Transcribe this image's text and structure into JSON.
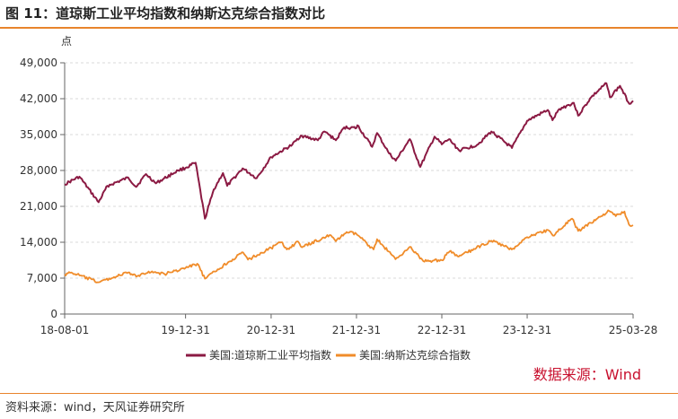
{
  "header": {
    "title": "图 11：道琼斯工业平均指数和纳斯达克综合指数对比"
  },
  "footer": {
    "source": "资料来源：wind，天风证券研究所"
  },
  "colors": {
    "accent": "#e8842c",
    "dow": "#8b1a43",
    "nasdaq": "#f08c2a",
    "watermark": "#c8102e"
  },
  "chart_data": {
    "type": "line",
    "unit_label": "点",
    "watermark": "数据来源：Wind",
    "x_ticks": [
      "18-08-01",
      "19-12-31",
      "20-12-31",
      "21-12-31",
      "22-12-31",
      "23-12-31",
      "25-03-28"
    ],
    "x_range": [
      "2018-08-01",
      "2025-03-28"
    ],
    "y_ticks": [
      "0",
      "7,000",
      "14,000",
      "21,000",
      "28,000",
      "35,000",
      "42,000",
      "49,000"
    ],
    "ylim": [
      0,
      49000
    ],
    "grid": true,
    "legend_position": "bottom",
    "series": [
      {
        "name": "美国:道琼斯工业平均指数",
        "color_key": "dow",
        "points": [
          [
            "2018-08-01",
            25300
          ],
          [
            "2018-10-03",
            26800
          ],
          [
            "2018-12-24",
            21800
          ],
          [
            "2019-01-31",
            25000
          ],
          [
            "2019-04-30",
            26600
          ],
          [
            "2019-06-03",
            24800
          ],
          [
            "2019-07-15",
            27300
          ],
          [
            "2019-08-26",
            25500
          ],
          [
            "2019-11-29",
            28000
          ],
          [
            "2019-12-31",
            28500
          ],
          [
            "2020-02-12",
            29500
          ],
          [
            "2020-03-23",
            18600
          ],
          [
            "2020-04-30",
            24300
          ],
          [
            "2020-06-08",
            27500
          ],
          [
            "2020-06-26",
            25000
          ],
          [
            "2020-08-31",
            28400
          ],
          [
            "2020-10-30",
            26500
          ],
          [
            "2020-12-31",
            30600
          ],
          [
            "2021-03-31",
            33000
          ],
          [
            "2021-05-07",
            34800
          ],
          [
            "2021-07-19",
            33900
          ],
          [
            "2021-08-16",
            35600
          ],
          [
            "2021-10-04",
            33900
          ],
          [
            "2021-11-08",
            36400
          ],
          [
            "2021-12-31",
            36300
          ],
          [
            "2022-01-04",
            36800
          ],
          [
            "2022-03-08",
            32600
          ],
          [
            "2022-03-29",
            35300
          ],
          [
            "2022-05-20",
            31300
          ],
          [
            "2022-06-17",
            29900
          ],
          [
            "2022-08-16",
            34100
          ],
          [
            "2022-09-30",
            28700
          ],
          [
            "2022-11-30",
            34600
          ],
          [
            "2022-12-31",
            33100
          ],
          [
            "2023-01-31",
            34100
          ],
          [
            "2023-03-15",
            31900
          ],
          [
            "2023-05-31",
            33000
          ],
          [
            "2023-07-31",
            35600
          ],
          [
            "2023-10-27",
            32400
          ],
          [
            "2023-12-31",
            37700
          ],
          [
            "2024-03-28",
            39800
          ],
          [
            "2024-04-17",
            37800
          ],
          [
            "2024-05-17",
            40000
          ],
          [
            "2024-07-17",
            41200
          ],
          [
            "2024-08-05",
            38700
          ],
          [
            "2024-09-30",
            42300
          ],
          [
            "2024-12-04",
            45000
          ],
          [
            "2024-12-19",
            42300
          ],
          [
            "2025-01-31",
            44500
          ],
          [
            "2025-03-12",
            41000
          ],
          [
            "2025-03-28",
            41600
          ]
        ]
      },
      {
        "name": "美国:纳斯达克综合指数",
        "color_key": "nasdaq",
        "points": [
          [
            "2018-08-01",
            7700
          ],
          [
            "2018-08-29",
            8100
          ],
          [
            "2018-12-24",
            6200
          ],
          [
            "2019-04-30",
            8100
          ],
          [
            "2019-06-03",
            7300
          ],
          [
            "2019-07-26",
            8300
          ],
          [
            "2019-10-02",
            7800
          ],
          [
            "2019-12-31",
            9000
          ],
          [
            "2020-02-19",
            9800
          ],
          [
            "2020-03-23",
            6900
          ],
          [
            "2020-06-30",
            10100
          ],
          [
            "2020-09-02",
            12000
          ],
          [
            "2020-09-23",
            10600
          ],
          [
            "2020-12-31",
            12900
          ],
          [
            "2021-02-12",
            14000
          ],
          [
            "2021-03-08",
            12600
          ],
          [
            "2021-04-26",
            14100
          ],
          [
            "2021-05-12",
            13000
          ],
          [
            "2021-09-07",
            15400
          ],
          [
            "2021-10-04",
            14200
          ],
          [
            "2021-11-19",
            16000
          ],
          [
            "2021-12-31",
            15600
          ],
          [
            "2022-03-14",
            12600
          ],
          [
            "2022-03-29",
            14600
          ],
          [
            "2022-06-16",
            10700
          ],
          [
            "2022-08-16",
            13100
          ],
          [
            "2022-10-13",
            10300
          ],
          [
            "2022-12-31",
            10500
          ],
          [
            "2023-02-02",
            12200
          ],
          [
            "2023-03-13",
            11200
          ],
          [
            "2023-07-31",
            14300
          ],
          [
            "2023-10-26",
            12600
          ],
          [
            "2023-12-31",
            15000
          ],
          [
            "2024-03-28",
            16400
          ],
          [
            "2024-04-19",
            15300
          ],
          [
            "2024-07-10",
            18600
          ],
          [
            "2024-08-05",
            16200
          ],
          [
            "2024-12-16",
            20100
          ],
          [
            "2025-01-13",
            19100
          ],
          [
            "2025-02-19",
            20000
          ],
          [
            "2025-03-10",
            17500
          ],
          [
            "2025-03-28",
            17300
          ]
        ]
      }
    ]
  }
}
